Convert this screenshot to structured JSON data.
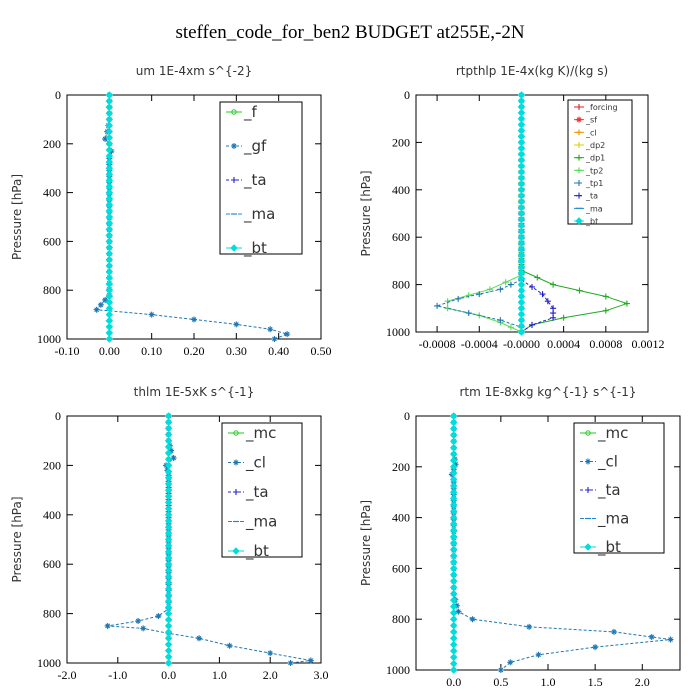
{
  "page": {
    "title": "steffen_code_for_ben2  BUDGET at255E,-2N"
  },
  "chart_data": [
    {
      "type": "line",
      "title": "um   1E-4xm s^{-2}",
      "ylabel": "Pressure [hPa]",
      "xlim": [
        -0.1,
        0.5
      ],
      "ylim": [
        1000,
        0
      ],
      "xticks": [
        -0.1,
        0.0,
        0.1,
        0.2,
        0.3,
        0.4,
        0.5
      ],
      "xtick_labels": [
        "-0.10",
        "0.00",
        "0.10",
        "0.20",
        "0.30",
        "0.40",
        "0.50"
      ],
      "yticks": [
        0,
        200,
        400,
        600,
        800,
        1000
      ],
      "ytick_labels": [
        "0",
        "200",
        "400",
        "600",
        "800",
        "1000"
      ],
      "legend_size": "large",
      "series": [
        {
          "name": "_f",
          "color": "#22cc22",
          "marker": "circle",
          "dash": "none",
          "points": [
            [
              0.0,
              0
            ],
            [
              0.0,
              1000
            ]
          ]
        },
        {
          "name": "_gf",
          "color": "#1f77b4",
          "marker": "star",
          "dash": "3,2",
          "points": [
            [
              0.0,
              0
            ],
            [
              0.0,
              100
            ],
            [
              -0.005,
              150
            ],
            [
              -0.01,
              180
            ],
            [
              0.0,
              200
            ],
            [
              0.005,
              230
            ],
            [
              0.0,
              260
            ],
            [
              0.0,
              700
            ],
            [
              0.0,
              820
            ],
            [
              -0.02,
              860
            ],
            [
              -0.03,
              880
            ],
            [
              0.1,
              900
            ],
            [
              0.2,
              920
            ],
            [
              0.3,
              940
            ],
            [
              0.38,
              960
            ],
            [
              0.42,
              980
            ],
            [
              0.39,
              1000
            ]
          ]
        },
        {
          "name": "_ta",
          "color": "#2222cc",
          "marker": "plus",
          "dash": "3,2",
          "points": [
            [
              0.0,
              0
            ],
            [
              0.0,
              1000
            ]
          ]
        },
        {
          "name": "_ma",
          "color": "#2288dd",
          "marker": "dash",
          "dash": "4,2",
          "points": [
            [
              0.0,
              0
            ],
            [
              0.0,
              1000
            ]
          ]
        },
        {
          "name": "_bt",
          "color": "#00dddd",
          "marker": "diamond",
          "dash": "none",
          "points": [
            [
              0.0,
              0
            ],
            [
              0.0,
              1000
            ]
          ]
        }
      ]
    },
    {
      "type": "line",
      "title": "rtpthlp   1E-4x(kg K)/(kg s)",
      "ylabel": "Pressure [hPa]",
      "xlim": [
        -0.001,
        0.0012
      ],
      "ylim": [
        1000,
        0
      ],
      "xticks": [
        -0.0008,
        -0.0004,
        0.0,
        0.0004,
        0.0008,
        0.0012
      ],
      "xtick_labels": [
        "-0.0008",
        "-0.0004",
        "-0.0000",
        "0.0004",
        "0.0008",
        "0.0012"
      ],
      "yticks": [
        0,
        200,
        400,
        600,
        800,
        1000
      ],
      "ytick_labels": [
        "0",
        "200",
        "400",
        "600",
        "800",
        "1000"
      ],
      "legend_size": "small",
      "series": [
        {
          "name": "_forcing",
          "color": "#dd2222",
          "marker": "plus",
          "dash": "none",
          "points": [
            [
              0.0,
              0
            ],
            [
              0.0,
              1000
            ]
          ]
        },
        {
          "name": "_sf",
          "color": "#ee3333",
          "marker": "star",
          "dash": "none",
          "points": [
            [
              0.0,
              0
            ],
            [
              0.0,
              1000
            ]
          ]
        },
        {
          "name": "_cl",
          "color": "#ee9900",
          "marker": "plus",
          "dash": "none",
          "points": [
            [
              0.0,
              0
            ],
            [
              0.0,
              1000
            ]
          ]
        },
        {
          "name": "_dp2",
          "color": "#ddcc00",
          "marker": "plus",
          "dash": "none",
          "points": [
            [
              0.0,
              0
            ],
            [
              0.0,
              1000
            ]
          ]
        },
        {
          "name": "_dp1",
          "color": "#22aa22",
          "marker": "plus",
          "dash": "none",
          "points": [
            [
              0.0,
              0
            ],
            [
              0.0,
              740
            ],
            [
              0.0003,
              800
            ],
            [
              0.0008,
              850
            ],
            [
              0.001,
              880
            ],
            [
              0.0008,
              910
            ],
            [
              0.0004,
              940
            ],
            [
              0.0001,
              970
            ],
            [
              0.0,
              1000
            ]
          ]
        },
        {
          "name": "_tp2",
          "color": "#55dd55",
          "marker": "plus",
          "dash": "none",
          "points": [
            [
              0.0,
              0
            ],
            [
              0.0,
              760
            ],
            [
              -0.0003,
              820
            ],
            [
              -0.0007,
              870
            ],
            [
              -0.0007,
              900
            ],
            [
              -0.0004,
              930
            ],
            [
              -0.0002,
              960
            ],
            [
              0.0,
              1000
            ]
          ]
        },
        {
          "name": "_tp1",
          "color": "#1f77b4",
          "marker": "plus",
          "dash": "3,2",
          "points": [
            [
              0.0,
              0
            ],
            [
              0.0,
              780
            ],
            [
              -0.0002,
              820
            ],
            [
              -0.0006,
              860
            ],
            [
              -0.0008,
              890
            ],
            [
              -0.0005,
              920
            ],
            [
              -0.0002,
              950
            ],
            [
              0.0,
              980
            ],
            [
              0.0,
              1000
            ]
          ]
        },
        {
          "name": "_ta",
          "color": "#2222cc",
          "marker": "plus",
          "dash": "3,2",
          "points": [
            [
              0.0,
              0
            ],
            [
              0.0,
              780
            ],
            [
              0.0002,
              840
            ],
            [
              0.0003,
              900
            ],
            [
              0.0003,
              940
            ],
            [
              0.0001,
              970
            ],
            [
              0.0,
              1000
            ]
          ]
        },
        {
          "name": "_ma",
          "color": "#2288dd",
          "marker": "dash",
          "dash": "4,2",
          "points": [
            [
              0.0,
              0
            ],
            [
              0.0,
              1000
            ]
          ]
        },
        {
          "name": "_bt",
          "color": "#00dddd",
          "marker": "diamond",
          "dash": "none",
          "points": [
            [
              0.0,
              0
            ],
            [
              0.0,
              1000
            ]
          ]
        }
      ]
    },
    {
      "type": "line",
      "title": "thlm   1E-5xK s^{-1}",
      "ylabel": "Pressure [hPa]",
      "xlim": [
        -2.0,
        3.0
      ],
      "ylim": [
        1000,
        0
      ],
      "xticks": [
        -2.0,
        -1.0,
        0.0,
        1.0,
        2.0,
        3.0
      ],
      "xtick_labels": [
        "-2.0",
        "-1.0",
        "0.0",
        "1.0",
        "2.0",
        "3.0"
      ],
      "yticks": [
        0,
        200,
        400,
        600,
        800,
        1000
      ],
      "ytick_labels": [
        "0",
        "200",
        "400",
        "600",
        "800",
        "1000"
      ],
      "legend_size": "large",
      "series": [
        {
          "name": "_mc",
          "color": "#22cc22",
          "marker": "circle",
          "dash": "none",
          "points": [
            [
              0.0,
              0
            ],
            [
              0.0,
              1000
            ]
          ]
        },
        {
          "name": "_cl",
          "color": "#1f77b4",
          "marker": "star",
          "dash": "3,2",
          "points": [
            [
              0.0,
              0
            ],
            [
              0.0,
              100
            ],
            [
              0.05,
              140
            ],
            [
              0.1,
              170
            ],
            [
              -0.05,
              200
            ],
            [
              0.0,
              240
            ],
            [
              0.0,
              780
            ],
            [
              -0.2,
              810
            ],
            [
              -0.6,
              830
            ],
            [
              -1.2,
              850
            ],
            [
              -0.5,
              860
            ],
            [
              0.0,
              880
            ],
            [
              0.6,
              900
            ],
            [
              1.2,
              930
            ],
            [
              2.0,
              960
            ],
            [
              2.8,
              990
            ],
            [
              2.4,
              1000
            ]
          ]
        },
        {
          "name": "_ta",
          "color": "#2222cc",
          "marker": "plus",
          "dash": "3,2",
          "points": [
            [
              0.0,
              0
            ],
            [
              0.0,
              1000
            ]
          ]
        },
        {
          "name": "_ma",
          "color": "#2288dd",
          "marker": "dash",
          "dash": "4,2",
          "points": [
            [
              0.0,
              0
            ],
            [
              0.0,
              1000
            ]
          ]
        },
        {
          "name": "_bt",
          "color": "#00dddd",
          "marker": "diamond",
          "dash": "none",
          "points": [
            [
              0.0,
              0
            ],
            [
              0.0,
              1000
            ]
          ]
        }
      ]
    },
    {
      "type": "line",
      "title": "rtm   1E-8xkg kg^{-1} s^{-1}",
      "ylabel": "Pressure [hPa]",
      "xlim": [
        -0.4,
        2.4
      ],
      "ylim": [
        1000,
        0
      ],
      "xticks": [
        0.0,
        0.5,
        1.0,
        1.5,
        2.0
      ],
      "xtick_labels": [
        "0.0",
        "0.5",
        "1.0",
        "1.5",
        "2.0"
      ],
      "yticks": [
        0,
        200,
        400,
        600,
        800,
        1000
      ],
      "ytick_labels": [
        "0",
        "200",
        "400",
        "600",
        "800",
        "1000"
      ],
      "legend_size": "large",
      "series": [
        {
          "name": "_mc",
          "color": "#22cc22",
          "marker": "circle",
          "dash": "none",
          "points": [
            [
              0.0,
              0
            ],
            [
              0.0,
              1000
            ]
          ]
        },
        {
          "name": "_cl",
          "color": "#1f77b4",
          "marker": "star",
          "dash": "3,2",
          "points": [
            [
              0.0,
              0
            ],
            [
              0.0,
              150
            ],
            [
              0.02,
              190
            ],
            [
              -0.02,
              230
            ],
            [
              0.0,
              260
            ],
            [
              0.0,
              700
            ],
            [
              0.05,
              770
            ],
            [
              0.2,
              800
            ],
            [
              0.8,
              830
            ],
            [
              1.7,
              850
            ],
            [
              2.1,
              870
            ],
            [
              2.3,
              880
            ],
            [
              1.5,
              910
            ],
            [
              0.9,
              940
            ],
            [
              0.6,
              970
            ],
            [
              0.5,
              1000
            ]
          ]
        },
        {
          "name": "_ta",
          "color": "#2222cc",
          "marker": "plus",
          "dash": "3,2",
          "points": [
            [
              0.0,
              0
            ],
            [
              0.0,
              1000
            ]
          ]
        },
        {
          "name": "_ma",
          "color": "#2288dd",
          "marker": "dash",
          "dash": "4,2",
          "points": [
            [
              0.0,
              0
            ],
            [
              0.0,
              1000
            ]
          ]
        },
        {
          "name": "_bt",
          "color": "#00dddd",
          "marker": "diamond",
          "dash": "none",
          "points": [
            [
              0.0,
              0
            ],
            [
              0.0,
              1000
            ]
          ]
        }
      ]
    }
  ]
}
